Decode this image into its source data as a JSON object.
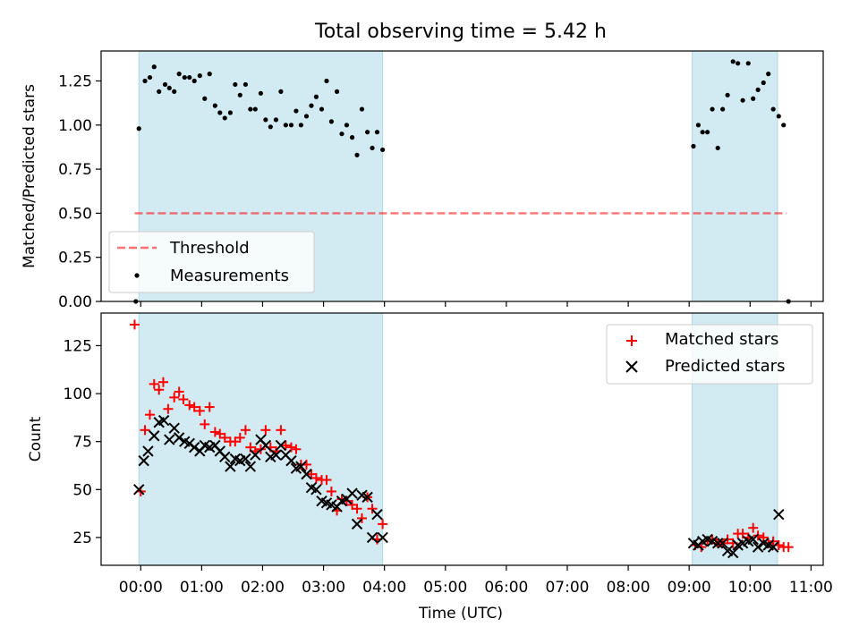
{
  "colors": {
    "shade": "#add8e6",
    "threshold": "#ff0000",
    "measurement": "#000000",
    "matched": "#ff0000",
    "predicted": "#000000"
  },
  "chart_data": {
    "title": "Total observing time = 5.42 h",
    "xlabel": "Time (UTC)",
    "x_range_hours": [
      -0.65,
      11.2
    ],
    "x_ticks": [
      "00:00",
      "01:00",
      "02:00",
      "03:00",
      "04:00",
      "05:00",
      "06:00",
      "07:00",
      "08:00",
      "09:00",
      "10:00",
      "11:00"
    ],
    "shaded_intervals_hours": [
      [
        -0.03,
        3.97
      ],
      [
        9.05,
        10.45
      ]
    ],
    "panels": [
      {
        "type": "scatter",
        "ylabel": "Matched/Predicted stars",
        "ylim": [
          0,
          1.42
        ],
        "yticks": [
          "0.00",
          "0.25",
          "0.50",
          "0.75",
          "1.00",
          "1.25"
        ],
        "legend_position": "lower-left",
        "threshold": {
          "name": "Threshold",
          "value": 0.5,
          "x": [
            -0.1,
            10.6
          ],
          "style": "dashed"
        },
        "series": [
          {
            "name": "Measurements",
            "x": [
              -0.08,
              -0.03,
              0.07,
              0.15,
              0.22,
              0.3,
              0.4,
              0.47,
              0.55,
              0.63,
              0.72,
              0.8,
              0.88,
              0.97,
              1.05,
              1.13,
              1.22,
              1.3,
              1.38,
              1.47,
              1.55,
              1.63,
              1.72,
              1.8,
              1.88,
              1.97,
              2.05,
              2.13,
              2.22,
              2.3,
              2.38,
              2.47,
              2.55,
              2.63,
              2.72,
              2.8,
              2.88,
              2.97,
              3.05,
              3.13,
              3.22,
              3.3,
              3.38,
              3.47,
              3.55,
              3.63,
              3.72,
              3.8,
              3.88,
              3.97,
              9.07,
              9.15,
              9.22,
              9.3,
              9.38,
              9.47,
              9.55,
              9.63,
              9.72,
              9.8,
              9.88,
              9.97,
              10.05,
              10.13,
              10.22,
              10.3,
              10.38,
              10.47,
              10.55,
              10.63
            ],
            "y": [
              0.0,
              0.98,
              1.25,
              1.27,
              1.33,
              1.19,
              1.23,
              1.21,
              1.19,
              1.29,
              1.27,
              1.27,
              1.25,
              1.28,
              1.15,
              1.29,
              1.11,
              1.07,
              1.04,
              1.07,
              1.23,
              1.17,
              1.23,
              1.09,
              1.09,
              1.18,
              1.03,
              0.99,
              1.03,
              1.19,
              1.0,
              1.0,
              1.08,
              1.0,
              1.05,
              1.11,
              1.16,
              1.09,
              1.25,
              1.02,
              1.19,
              0.95,
              1.0,
              0.93,
              0.83,
              1.09,
              0.96,
              0.87,
              0.96,
              0.86,
              0.88,
              1.0,
              0.96,
              0.96,
              1.09,
              0.87,
              1.09,
              1.17,
              1.36,
              1.35,
              1.14,
              1.35,
              1.15,
              1.2,
              1.24,
              1.29,
              1.09,
              1.05,
              1.0,
              0.0
            ]
          }
        ]
      },
      {
        "type": "scatter",
        "ylabel": "Count",
        "ylim": [
          10.5,
          142
        ],
        "yticks": [
          "25",
          "50",
          "75",
          "100",
          "125"
        ],
        "legend_position": "upper-right",
        "series": [
          {
            "name": "Matched stars",
            "marker": "plus",
            "x": [
              -0.1,
              0.0,
              0.07,
              0.15,
              0.22,
              0.3,
              0.37,
              0.45,
              0.55,
              0.63,
              0.7,
              0.8,
              0.88,
              0.97,
              1.05,
              1.13,
              1.22,
              1.3,
              1.38,
              1.47,
              1.55,
              1.63,
              1.72,
              1.8,
              1.88,
              1.97,
              2.05,
              2.13,
              2.22,
              2.3,
              2.38,
              2.47,
              2.55,
              2.63,
              2.72,
              2.8,
              2.88,
              2.97,
              3.05,
              3.13,
              3.22,
              3.3,
              3.38,
              3.47,
              3.55,
              3.63,
              3.72,
              3.8,
              3.88,
              3.97,
              9.1,
              9.2,
              9.3,
              9.38,
              9.47,
              9.55,
              9.63,
              9.72,
              9.8,
              9.88,
              9.97,
              10.05,
              10.13,
              10.22,
              10.3,
              10.38,
              10.47,
              10.55,
              10.63
            ],
            "y": [
              136,
              49,
              81,
              89,
              105,
              102,
              106,
              92,
              98,
              101,
              97,
              94,
              93,
              91,
              84,
              93,
              80,
              79,
              77,
              75,
              75,
              77,
              81,
              72,
              70,
              71,
              81,
              72,
              70,
              81,
              73,
              72,
              71,
              63,
              63,
              58,
              56,
              55,
              55,
              49,
              39,
              45,
              44,
              42,
              40,
              35,
              46,
              40,
              24,
              32,
              21,
              20,
              23,
              24,
              22,
              22,
              24,
              22,
              27,
              27,
              25,
              30,
              26,
              25,
              22,
              23,
              21,
              20,
              20
            ]
          },
          {
            "name": "Predicted stars",
            "marker": "x",
            "x": [
              -0.03,
              0.05,
              0.12,
              0.22,
              0.3,
              0.38,
              0.47,
              0.55,
              0.63,
              0.72,
              0.8,
              0.88,
              0.97,
              1.05,
              1.13,
              1.22,
              1.3,
              1.38,
              1.47,
              1.55,
              1.63,
              1.72,
              1.8,
              1.88,
              1.97,
              2.05,
              2.13,
              2.22,
              2.3,
              2.38,
              2.47,
              2.55,
              2.63,
              2.72,
              2.8,
              2.88,
              2.97,
              3.05,
              3.13,
              3.22,
              3.3,
              3.38,
              3.47,
              3.55,
              3.63,
              3.72,
              3.8,
              3.88,
              3.97,
              9.07,
              9.15,
              9.22,
              9.3,
              9.38,
              9.47,
              9.55,
              9.63,
              9.72,
              9.8,
              9.88,
              9.97,
              10.05,
              10.13,
              10.22,
              10.3,
              10.38,
              10.47
            ],
            "y": [
              50,
              65,
              70,
              78,
              85,
              86,
              76,
              82,
              77,
              75,
              74,
              72,
              70,
              73,
              72,
              73,
              70,
              67,
              62,
              66,
              65,
              66,
              62,
              68,
              76,
              73,
              67,
              68,
              73,
              68,
              65,
              61,
              62,
              58,
              51,
              50,
              44,
              43,
              42,
              41,
              44,
              45,
              48,
              32,
              47,
              46,
              25,
              37,
              25,
              22,
              21,
              23,
              24,
              23,
              22,
              22,
              18,
              17,
              21,
              22,
              23,
              24,
              20,
              22,
              21,
              20,
              37
            ]
          }
        ]
      }
    ]
  }
}
